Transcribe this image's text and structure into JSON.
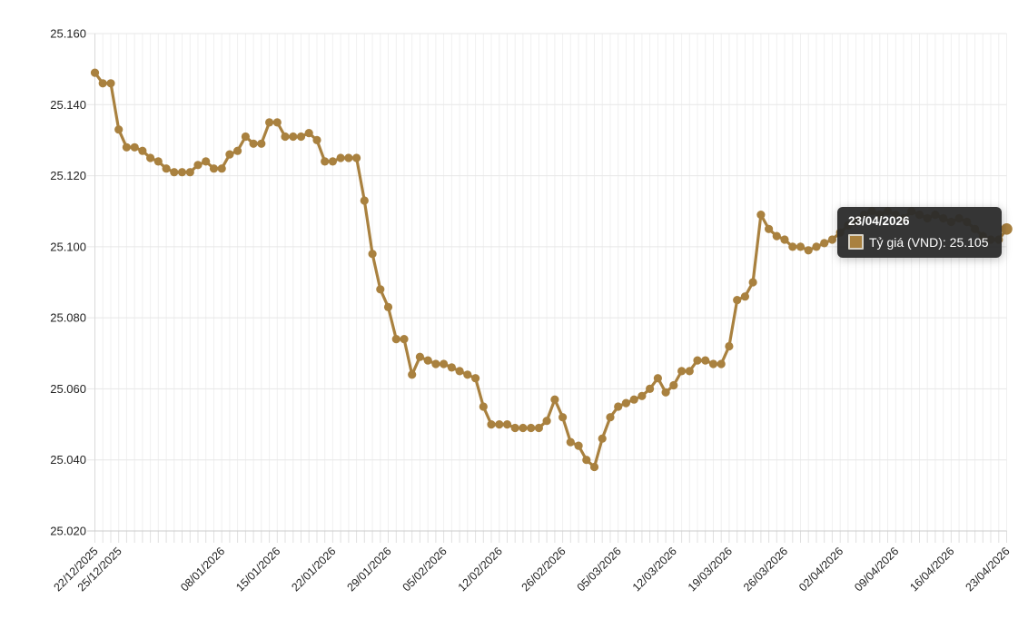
{
  "page": {
    "background": "#ffffff"
  },
  "colors": {
    "series": "#a9813f",
    "grid_horizontal": "#e7e7e7",
    "grid_vertical": "#f0f0f0",
    "axis_line": "#cccccc",
    "tick_mark": "#e0e0e0",
    "axis_label": "#222222",
    "tooltip_background": "#2a2a2a",
    "tooltip_text": "#ffffff"
  },
  "tooltip": {
    "title": "23/04/2026",
    "series_label": "Tỷ giá (VND)",
    "value": "25.105",
    "text": "Tỷ giá (VND): 25.105"
  },
  "chart_data": {
    "type": "line",
    "title": "",
    "xlabel": "",
    "ylabel": "",
    "legend_position": "none",
    "grid": true,
    "number_format": "dot-thousands",
    "active_index": 115,
    "y": {
      "min": 25020,
      "max": 25160,
      "tick_values": [
        25160,
        25140,
        25120,
        25100,
        25080,
        25060,
        25040,
        25020
      ],
      "tick_labels": [
        "25.160",
        "25.140",
        "25.120",
        "25.100",
        "25.080",
        "25.060",
        "25.040",
        "25.020"
      ]
    },
    "x": {
      "tick_indices": [
        0,
        3,
        16,
        23,
        30,
        37,
        44,
        51,
        59,
        66,
        73,
        80,
        87,
        94,
        101,
        108,
        115
      ],
      "tick_labels": [
        "22/12/2025",
        "25/12/2025",
        "08/01/2026",
        "15/01/2026",
        "22/01/2026",
        "29/01/2026",
        "05/02/2026",
        "12/02/2026",
        "26/02/2026",
        "05/03/2026",
        "12/03/2026",
        "19/03/2026",
        "26/03/2026",
        "02/04/2026",
        "09/04/2026",
        "16/04/2026",
        "23/04/2026"
      ],
      "categories": [
        "22/12/2025",
        "23/12/2025",
        "24/12/2025",
        "25/12/2025",
        "26/12/2025",
        "27/12/2025",
        "28/12/2025",
        "29/12/2025",
        "30/12/2025",
        "31/12/2025",
        "02/01/2026",
        "03/01/2026",
        "04/01/2026",
        "05/01/2026",
        "06/01/2026",
        "07/01/2026",
        "08/01/2026",
        "09/01/2026",
        "10/01/2026",
        "11/01/2026",
        "12/01/2026",
        "13/01/2026",
        "14/01/2026",
        "15/01/2026",
        "16/01/2026",
        "17/01/2026",
        "18/01/2026",
        "19/01/2026",
        "20/01/2026",
        "21/01/2026",
        "22/01/2026",
        "23/01/2026",
        "24/01/2026",
        "25/01/2026",
        "26/01/2026",
        "27/01/2026",
        "28/01/2026",
        "29/01/2026",
        "30/01/2026",
        "31/01/2026",
        "01/02/2026",
        "02/02/2026",
        "03/02/2026",
        "04/02/2026",
        "05/02/2026",
        "06/02/2026",
        "07/02/2026",
        "08/02/2026",
        "09/02/2026",
        "10/02/2026",
        "11/02/2026",
        "12/02/2026",
        "13/02/2026",
        "14/02/2026",
        "15/02/2026",
        "16/02/2026",
        "23/02/2026",
        "24/02/2026",
        "25/02/2026",
        "26/02/2026",
        "27/02/2026",
        "28/02/2026",
        "01/03/2026",
        "02/03/2026",
        "03/03/2026",
        "04/03/2026",
        "05/03/2026",
        "06/03/2026",
        "07/03/2026",
        "08/03/2026",
        "09/03/2026",
        "10/03/2026",
        "11/03/2026",
        "12/03/2026",
        "13/03/2026",
        "14/03/2026",
        "15/03/2026",
        "16/03/2026",
        "17/03/2026",
        "18/03/2026",
        "19/03/2026",
        "20/03/2026",
        "21/03/2026",
        "22/03/2026",
        "23/03/2026",
        "24/03/2026",
        "25/03/2026",
        "26/03/2026",
        "27/03/2026",
        "28/03/2026",
        "29/03/2026",
        "30/03/2026",
        "31/03/2026",
        "01/04/2026",
        "02/04/2026",
        "03/04/2026",
        "04/04/2026",
        "05/04/2026",
        "06/04/2026",
        "07/04/2026",
        "08/04/2026",
        "09/04/2026",
        "10/04/2026",
        "11/04/2026",
        "12/04/2026",
        "13/04/2026",
        "14/04/2026",
        "15/04/2026",
        "16/04/2026",
        "17/04/2026",
        "18/04/2026",
        "19/04/2026",
        "20/04/2026",
        "21/04/2026",
        "22/04/2026",
        "23/04/2026"
      ]
    },
    "series": [
      {
        "name": "Tỷ giá (VND)",
        "color": "#a9813f",
        "values": [
          25149,
          25146,
          25146,
          25133,
          25128,
          25128,
          25127,
          25125,
          25124,
          25122,
          25121,
          25121,
          25121,
          25123,
          25124,
          25122,
          25122,
          25126,
          25127,
          25131,
          25129,
          25129,
          25135,
          25135,
          25131,
          25131,
          25131,
          25132,
          25130,
          25124,
          25124,
          25125,
          25125,
          25125,
          25113,
          25098,
          25088,
          25083,
          25074,
          25074,
          25064,
          25069,
          25068,
          25067,
          25067,
          25066,
          25065,
          25064,
          25063,
          25055,
          25050,
          25050,
          25050,
          25049,
          25049,
          25049,
          25049,
          25051,
          25057,
          25052,
          25045,
          25044,
          25040,
          25038,
          25046,
          25052,
          25055,
          25056,
          25057,
          25058,
          25060,
          25063,
          25059,
          25061,
          25065,
          25065,
          25068,
          25068,
          25067,
          25067,
          25072,
          25085,
          25086,
          25090,
          25109,
          25105,
          25103,
          25102,
          25100,
          25100,
          25099,
          25100,
          25101,
          25102,
          25104,
          25106,
          25107,
          25109,
          25110,
          25109,
          25110,
          25109,
          25108,
          25110,
          25109,
          25108,
          25109,
          25108,
          25107,
          25108,
          25107,
          25105,
          25103,
          25102,
          25102,
          25105
        ]
      }
    ]
  }
}
